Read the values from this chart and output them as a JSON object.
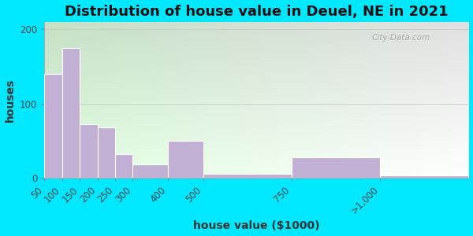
{
  "title": "Distribution of house value in Deuel, NE in 2021",
  "xlabel": "house value ($1000)",
  "ylabel": "houses",
  "bar_color": "#c2afd4",
  "bar_edge_color": "#ffffff",
  "background_outer": "#00e8ff",
  "ylim": [
    0,
    210
  ],
  "yticks": [
    0,
    100,
    200
  ],
  "bin_edges": [
    50,
    100,
    150,
    200,
    250,
    300,
    400,
    500,
    750,
    1000,
    1250
  ],
  "bin_labels": [
    "50",
    "100",
    "150",
    "200",
    "250",
    "300",
    "400",
    "500",
    "750",
    ">1,000"
  ],
  "values": [
    140,
    175,
    72,
    68,
    32,
    18,
    50,
    5,
    28,
    3
  ],
  "watermark": "City-Data.com",
  "title_fontsize": 13,
  "axis_label_fontsize": 10,
  "tick_fontsize": 8.5
}
